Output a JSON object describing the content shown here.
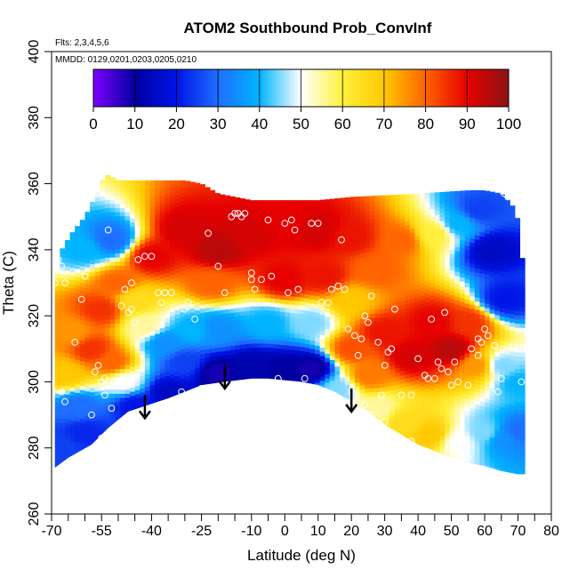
{
  "chart_data": {
    "type": "heatmap",
    "title": "ATOM2 Southbound Prob_ConvInf",
    "annotations": {
      "flights": "Flts: 2,3,4,5,6",
      "dates": "MMDD: 0129,0201,0203,0205,0210"
    },
    "xlabel": "Latitude (deg N)",
    "ylabel": "Theta (C)",
    "xlim": [
      -70,
      80
    ],
    "ylim": [
      260,
      400
    ],
    "x_major_ticks": [
      -70,
      -55,
      -40,
      -25,
      -10,
      0,
      10,
      20,
      30,
      40,
      50,
      60,
      70,
      80
    ],
    "x_minor_ticks": [
      -65,
      -60,
      -50,
      -45,
      -35,
      -30,
      -20,
      -15,
      -5,
      5,
      15,
      25,
      35,
      45,
      55,
      65,
      75
    ],
    "y_ticks": [
      260,
      280,
      300,
      320,
      340,
      360,
      380,
      400
    ],
    "colorbar": {
      "range": [
        0,
        100
      ],
      "ticks": [
        0,
        10,
        20,
        30,
        40,
        50,
        60,
        70,
        80,
        90,
        100
      ],
      "colors": [
        "#7f00ff",
        "#0000a0",
        "#0014e6",
        "#1e6eff",
        "#00b4ff",
        "#ffffff",
        "#fff03c",
        "#ffc800",
        "#ff6400",
        "#e60000",
        "#8c1414"
      ]
    },
    "surface_boundary": [
      [
        -69,
        274
      ],
      [
        -65,
        277
      ],
      [
        -58,
        281
      ],
      [
        -53,
        286
      ],
      [
        -47,
        291
      ],
      [
        -41,
        293
      ],
      [
        -35,
        295
      ],
      [
        -30,
        297
      ],
      [
        -25,
        299
      ],
      [
        -18,
        300
      ],
      [
        -10,
        301
      ],
      [
        -5,
        301
      ],
      [
        0,
        300.5
      ],
      [
        5,
        300
      ],
      [
        10,
        299
      ],
      [
        15,
        297
      ],
      [
        20,
        294
      ],
      [
        25,
        291
      ],
      [
        30,
        287
      ],
      [
        35,
        284
      ],
      [
        40,
        281
      ],
      [
        45,
        279
      ],
      [
        50,
        277
      ],
      [
        55,
        275.5
      ],
      [
        60,
        274.5
      ],
      [
        65,
        273
      ],
      [
        70,
        272
      ]
    ],
    "upper_boundary": [
      [
        -69,
        330
      ],
      [
        -67,
        340
      ],
      [
        -64,
        345
      ],
      [
        -60,
        350
      ],
      [
        -56,
        358
      ],
      [
        -54,
        363
      ],
      [
        -50,
        361
      ],
      [
        -40,
        361
      ],
      [
        -30,
        361
      ],
      [
        -25,
        360
      ],
      [
        -20,
        357
      ],
      [
        -10,
        355
      ],
      [
        0,
        355
      ],
      [
        10,
        355
      ],
      [
        20,
        356
      ],
      [
        40,
        357
      ],
      [
        55,
        358
      ],
      [
        60,
        358
      ],
      [
        65,
        357
      ],
      [
        68,
        354
      ],
      [
        70,
        349
      ],
      [
        71,
        340
      ],
      [
        72,
        330
      ]
    ],
    "prob_field": [
      {
        "lat": -66,
        "theta": 303,
        "value": 70
      },
      {
        "lat": -64,
        "theta": 315,
        "value": 75
      },
      {
        "lat": -58,
        "theta": 310,
        "value": 85
      },
      {
        "lat": -55,
        "theta": 322,
        "value": 85
      },
      {
        "lat": -50,
        "theta": 330,
        "value": 80
      },
      {
        "lat": -45,
        "theta": 325,
        "value": 65
      },
      {
        "lat": -42,
        "theta": 317,
        "value": 55
      },
      {
        "lat": -52,
        "theta": 306,
        "value": 80
      },
      {
        "lat": -48,
        "theta": 300,
        "value": 50
      },
      {
        "lat": -62,
        "theta": 292,
        "value": 30
      },
      {
        "lat": -45,
        "theta": 293,
        "value": 20
      },
      {
        "lat": -35,
        "theta": 297,
        "value": 15
      },
      {
        "lat": -30,
        "theta": 306,
        "value": 25
      },
      {
        "lat": -28,
        "theta": 316,
        "value": 40
      },
      {
        "lat": -36,
        "theta": 312,
        "value": 35
      },
      {
        "lat": -20,
        "theta": 303,
        "value": 8
      },
      {
        "lat": -10,
        "theta": 305,
        "value": 12
      },
      {
        "lat": 0,
        "theta": 304,
        "value": 10
      },
      {
        "lat": 8,
        "theta": 304,
        "value": 8
      },
      {
        "lat": -20,
        "theta": 316,
        "value": 35
      },
      {
        "lat": -5,
        "theta": 318,
        "value": 40
      },
      {
        "lat": 8,
        "theta": 318,
        "value": 45
      },
      {
        "lat": -60,
        "theta": 340,
        "value": 40
      },
      {
        "lat": -52,
        "theta": 343,
        "value": 30
      },
      {
        "lat": -40,
        "theta": 338,
        "value": 90
      },
      {
        "lat": -30,
        "theta": 346,
        "value": 92
      },
      {
        "lat": -20,
        "theta": 340,
        "value": 95
      },
      {
        "lat": -22,
        "theta": 330,
        "value": 80
      },
      {
        "lat": -10,
        "theta": 345,
        "value": 92
      },
      {
        "lat": 0,
        "theta": 348,
        "value": 90
      },
      {
        "lat": 10,
        "theta": 346,
        "value": 92
      },
      {
        "lat": 20,
        "theta": 344,
        "value": 88
      },
      {
        "lat": 0,
        "theta": 331,
        "value": 90
      },
      {
        "lat": 12,
        "theta": 332,
        "value": 88
      },
      {
        "lat": 20,
        "theta": 325,
        "value": 70
      },
      {
        "lat": 27,
        "theta": 334,
        "value": 80
      },
      {
        "lat": 35,
        "theta": 343,
        "value": 80
      },
      {
        "lat": 45,
        "theta": 345,
        "value": 60
      },
      {
        "lat": 52,
        "theta": 348,
        "value": 40
      },
      {
        "lat": 58,
        "theta": 352,
        "value": 25
      },
      {
        "lat": 62,
        "theta": 340,
        "value": 15
      },
      {
        "lat": 66,
        "theta": 325,
        "value": 20
      },
      {
        "lat": 20,
        "theta": 310,
        "value": 82
      },
      {
        "lat": 25,
        "theta": 302,
        "value": 78
      },
      {
        "lat": 30,
        "theta": 315,
        "value": 88
      },
      {
        "lat": 38,
        "theta": 308,
        "value": 92
      },
      {
        "lat": 45,
        "theta": 318,
        "value": 90
      },
      {
        "lat": 50,
        "theta": 310,
        "value": 95
      },
      {
        "lat": 55,
        "theta": 318,
        "value": 85
      },
      {
        "lat": 58,
        "theta": 305,
        "value": 75
      },
      {
        "lat": 65,
        "theta": 305,
        "value": 45
      },
      {
        "lat": 70,
        "theta": 300,
        "value": 40
      },
      {
        "lat": 16,
        "theta": 298,
        "value": 45
      },
      {
        "lat": 28,
        "theta": 292,
        "value": 55
      },
      {
        "lat": 36,
        "theta": 288,
        "value": 65
      },
      {
        "lat": 44,
        "theta": 284,
        "value": 70
      },
      {
        "lat": 52,
        "theta": 282,
        "value": 50
      },
      {
        "lat": 60,
        "theta": 285,
        "value": 45
      },
      {
        "lat": 66,
        "theta": 283,
        "value": 35
      },
      {
        "lat": 70,
        "theta": 285,
        "value": 30
      },
      {
        "lat": -67,
        "theta": 280,
        "value": 25
      },
      {
        "lat": -60,
        "theta": 285,
        "value": 22
      }
    ],
    "observations": [
      [
        -69,
        330
      ],
      [
        -68,
        337
      ],
      [
        -67,
        335
      ],
      [
        -66,
        330
      ],
      [
        -67,
        297
      ],
      [
        -66,
        294
      ],
      [
        -63,
        312
      ],
      [
        -61,
        325
      ],
      [
        -60,
        332
      ],
      [
        -58,
        290
      ],
      [
        -57,
        303
      ],
      [
        -56,
        305
      ],
      [
        -55,
        300
      ],
      [
        -54,
        301
      ],
      [
        -56,
        281
      ],
      [
        -55,
        283
      ],
      [
        -54,
        296
      ],
      [
        -53,
        346
      ],
      [
        -52,
        292
      ],
      [
        -50,
        287
      ],
      [
        -49,
        323
      ],
      [
        -48,
        328
      ],
      [
        -47,
        321
      ],
      [
        -46,
        322
      ],
      [
        -45,
        318
      ],
      [
        -46,
        330
      ],
      [
        -44,
        337
      ],
      [
        -42,
        338
      ],
      [
        -40,
        338
      ],
      [
        -38,
        327
      ],
      [
        -37,
        324
      ],
      [
        -36,
        327
      ],
      [
        -34,
        327
      ],
      [
        -33,
        292
      ],
      [
        -31,
        297
      ],
      [
        -30,
        322
      ],
      [
        -29,
        324
      ],
      [
        -27,
        319
      ],
      [
        -25,
        298
      ],
      [
        -23,
        345
      ],
      [
        -20,
        335
      ],
      [
        -18,
        327
      ],
      [
        -16,
        350
      ],
      [
        -15,
        351
      ],
      [
        -14,
        351
      ],
      [
        -13,
        350
      ],
      [
        -12,
        351
      ],
      [
        -10,
        333
      ],
      [
        -10,
        331
      ],
      [
        -9,
        328
      ],
      [
        -7,
        331
      ],
      [
        -5,
        349
      ],
      [
        -4,
        332
      ],
      [
        -2,
        301
      ],
      [
        0,
        348
      ],
      [
        1,
        327
      ],
      [
        2,
        349
      ],
      [
        3,
        346
      ],
      [
        4,
        328
      ],
      [
        6,
        301
      ],
      [
        8,
        348
      ],
      [
        10,
        348
      ],
      [
        11,
        324
      ],
      [
        13,
        324
      ],
      [
        14,
        328
      ],
      [
        16,
        329
      ],
      [
        17,
        343
      ],
      [
        18,
        328
      ],
      [
        19,
        316
      ],
      [
        21,
        314
      ],
      [
        22,
        308
      ],
      [
        23,
        313
      ],
      [
        24,
        320
      ],
      [
        25,
        318
      ],
      [
        26,
        326
      ],
      [
        28,
        312
      ],
      [
        29,
        296
      ],
      [
        30,
        305
      ],
      [
        31,
        309
      ],
      [
        32,
        310
      ],
      [
        33,
        322
      ],
      [
        35,
        296
      ],
      [
        38,
        296
      ],
      [
        40,
        307
      ],
      [
        42,
        302
      ],
      [
        43,
        301
      ],
      [
        44,
        319
      ],
      [
        45,
        301
      ],
      [
        46,
        306
      ],
      [
        47,
        304
      ],
      [
        48,
        321
      ],
      [
        49,
        303
      ],
      [
        50,
        299
      ],
      [
        51,
        306
      ],
      [
        52,
        300
      ],
      [
        55,
        299
      ],
      [
        56,
        310
      ],
      [
        58,
        308
      ],
      [
        58,
        313
      ],
      [
        59,
        312
      ],
      [
        60,
        316
      ],
      [
        61,
        314
      ],
      [
        63,
        311
      ],
      [
        64,
        297
      ],
      [
        65,
        301
      ],
      [
        66,
        357
      ],
      [
        67,
        356
      ],
      [
        50,
        275
      ],
      [
        55,
        277
      ],
      [
        38,
        282
      ],
      [
        42,
        278
      ],
      [
        30,
        288
      ],
      [
        20,
        297
      ],
      [
        24,
        293
      ],
      [
        26,
        290
      ],
      [
        71,
        300
      ]
    ],
    "arrows": [
      {
        "lat": -42,
        "from_theta": 296,
        "to_theta": 289
      },
      {
        "lat": -18,
        "from_theta": 305,
        "to_theta": 298
      },
      {
        "lat": 20,
        "from_theta": 298,
        "to_theta": 291
      }
    ]
  }
}
